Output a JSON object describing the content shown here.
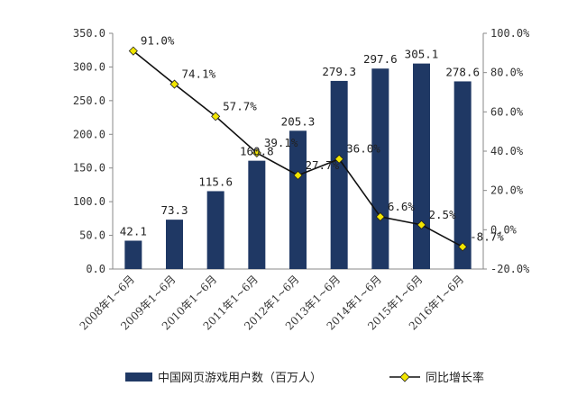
{
  "chart_data": {
    "type": "bar",
    "categories": [
      "2008年1~6月",
      "2009年1~6月",
      "2010年1~6月",
      "2011年1~6月",
      "2012年1~6月",
      "2013年1~6月",
      "2014年1~6月",
      "2015年1~6月",
      "2016年1~6月"
    ],
    "series": [
      {
        "name": "中国网页游戏用户数（百万人）",
        "type": "bar",
        "axis": "left",
        "values": [
          42.1,
          73.3,
          115.6,
          160.8,
          205.3,
          279.3,
          297.6,
          305.1,
          278.6
        ],
        "labels": [
          "42.1",
          "73.3",
          "115.6",
          "160.8",
          "205.3",
          "279.3",
          "297.6",
          "305.1",
          "278.6"
        ],
        "color": "#1f3864"
      },
      {
        "name": "同比增长率",
        "type": "line",
        "axis": "right",
        "values": [
          91.0,
          74.1,
          57.7,
          39.1,
          27.7,
          36.0,
          6.6,
          2.5,
          -8.7
        ],
        "labels": [
          "91.0%",
          "74.1%",
          "57.7%",
          "39.1%",
          "27.7%",
          "36.0%",
          "6.6%",
          "2.5%",
          "-8.7%"
        ],
        "line_color": "#111111",
        "marker_color": "#f2e600"
      }
    ],
    "y_left": {
      "min": 0,
      "max": 350,
      "step": 50,
      "ticks": [
        "0.0",
        "50.0",
        "100.0",
        "150.0",
        "200.0",
        "250.0",
        "300.0",
        "350.0"
      ]
    },
    "y_right": {
      "min": -20,
      "max": 100,
      "step": 20,
      "ticks": [
        "-20.0%",
        "0.0%",
        "20.0%",
        "40.0%",
        "60.0%",
        "80.0%",
        "100.0%"
      ]
    },
    "grid": false,
    "legend_position": "bottom"
  }
}
